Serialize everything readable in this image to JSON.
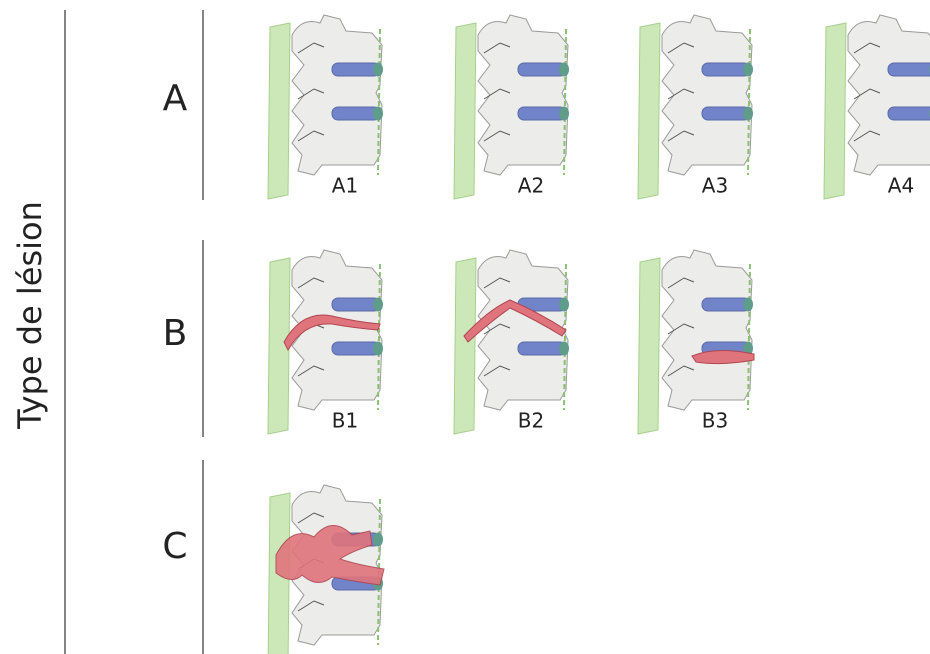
{
  "axis_label": "Type de lésion",
  "groups": [
    {
      "label": "A",
      "items": [
        "A1",
        "A2",
        "A3",
        "A4"
      ]
    },
    {
      "label": "B",
      "items": [
        "B1",
        "B2",
        "B3"
      ]
    },
    {
      "label": "C",
      "items": []
    }
  ]
}
